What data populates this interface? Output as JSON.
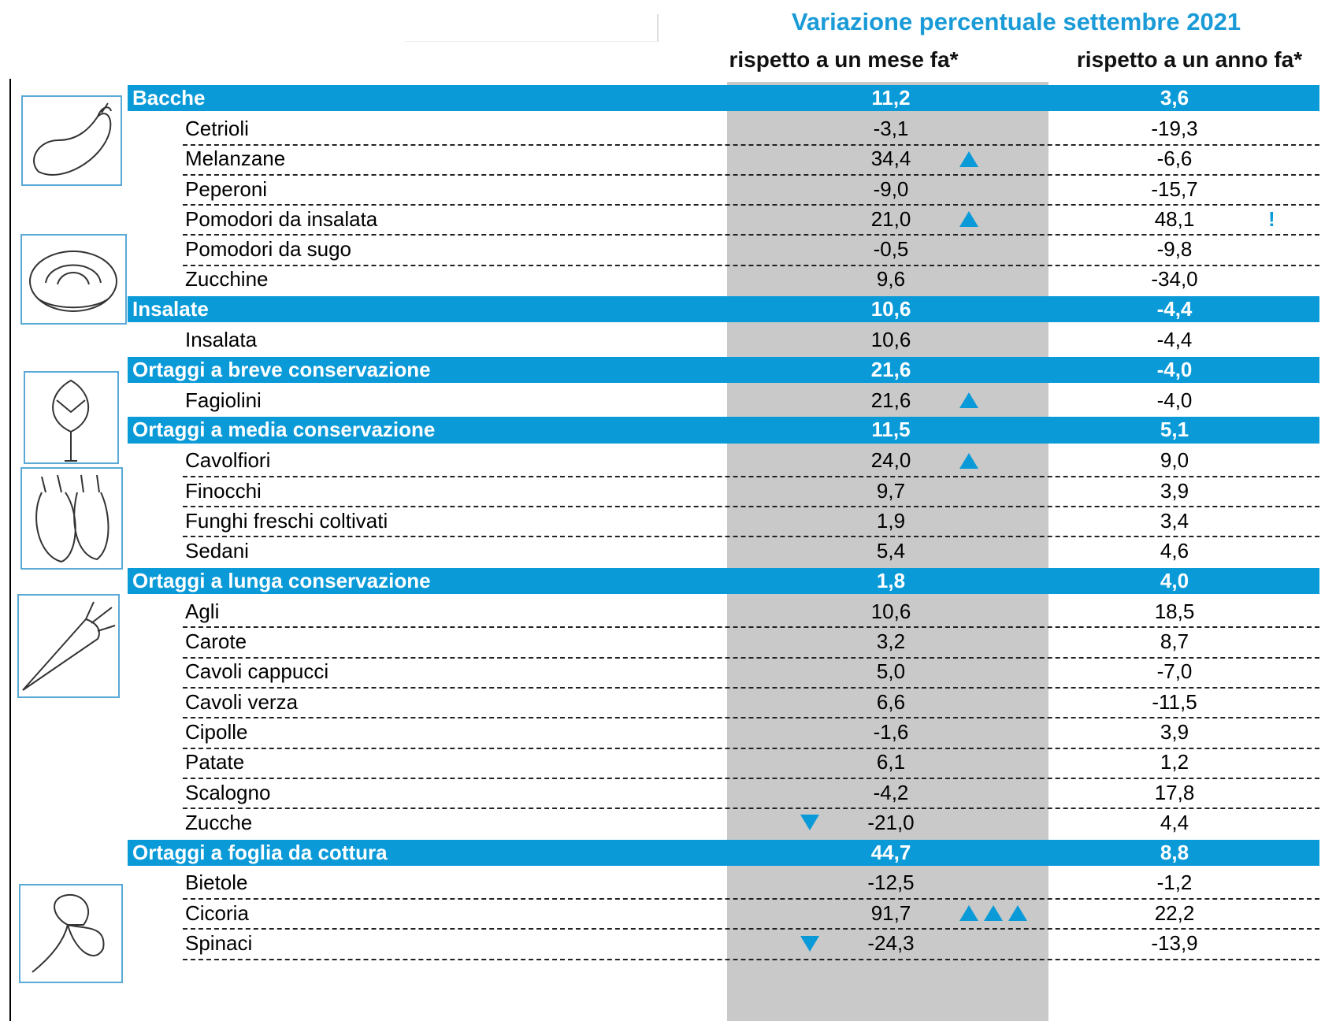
{
  "header": {
    "title": "Variazione percentuale settembre 2021",
    "columns": [
      "rispetto a un mese fa*",
      "rispetto a un anno fa*"
    ]
  },
  "table": {
    "groups": [
      {
        "name": "Bacche",
        "month": "11,2",
        "year": "3,6",
        "items": [
          {
            "name": "Cetrioli",
            "month": "-3,1",
            "year": "-19,3"
          },
          {
            "name": "Melanzane",
            "month": "34,4",
            "year": "-6,6"
          },
          {
            "name": "Peperoni",
            "month": "-9,0",
            "year": "-15,7"
          },
          {
            "name": "Pomodori da insalata",
            "month": "21,0",
            "year": "48,1",
            "year_note": "!"
          },
          {
            "name": "Pomodori da sugo",
            "month": "-0,5",
            "year": "-9,8"
          },
          {
            "name": "Zucchine",
            "month": "9,6",
            "year": "-34,0"
          }
        ]
      },
      {
        "name": "Insalate",
        "month": "10,6",
        "year": "-4,4",
        "items": [
          {
            "name": "Insalata",
            "month": "10,6",
            "year": "-4,4"
          }
        ]
      },
      {
        "name": "Ortaggi a breve conservazione",
        "month": "21,6",
        "year": "-4,0",
        "items": [
          {
            "name": "Fagiolini",
            "month": "21,6",
            "year": "-4,0"
          }
        ]
      },
      {
        "name": "Ortaggi a media conservazione",
        "month": "11,5",
        "year": "5,1",
        "items": [
          {
            "name": "Cavolfiori",
            "month": "24,0",
            "year": "9,0"
          },
          {
            "name": "Finocchi",
            "month": "9,7",
            "year": "3,9"
          },
          {
            "name": "Funghi freschi coltivati",
            "month": "1,9",
            "year": "3,4"
          },
          {
            "name": "Sedani",
            "month": "5,4",
            "year": "4,6"
          }
        ]
      },
      {
        "name": "Ortaggi a lunga conservazione",
        "month": "1,8",
        "year": "4,0",
        "items": [
          {
            "name": "Agli",
            "month": "10,6",
            "year": "18,5"
          },
          {
            "name": "Carote",
            "month": "3,2",
            "year": "8,7"
          },
          {
            "name": "Cavoli cappucci",
            "month": "5,0",
            "year": "-7,0"
          },
          {
            "name": "Cavoli verza",
            "month": "6,6",
            "year": "-11,5"
          },
          {
            "name": "Cipolle",
            "month": "-1,6",
            "year": "3,9"
          },
          {
            "name": "Patate",
            "month": "6,1",
            "year": "1,2"
          },
          {
            "name": "Scalogno",
            "month": "-4,2",
            "year": "17,8"
          },
          {
            "name": "Zucche",
            "month": "-21,0",
            "year": "4,4"
          }
        ]
      },
      {
        "name": "Ortaggi a foglia da cottura",
        "month": "44,7",
        "year": "8,8",
        "items": [
          {
            "name": "Bietole",
            "month": "-12,5",
            "year": "-1,2"
          },
          {
            "name": "Cicoria",
            "month": "91,7",
            "year": "22,2"
          },
          {
            "name": "Spinaci",
            "month": "-24,3",
            "year": "-13,9"
          }
        ]
      }
    ]
  }
}
